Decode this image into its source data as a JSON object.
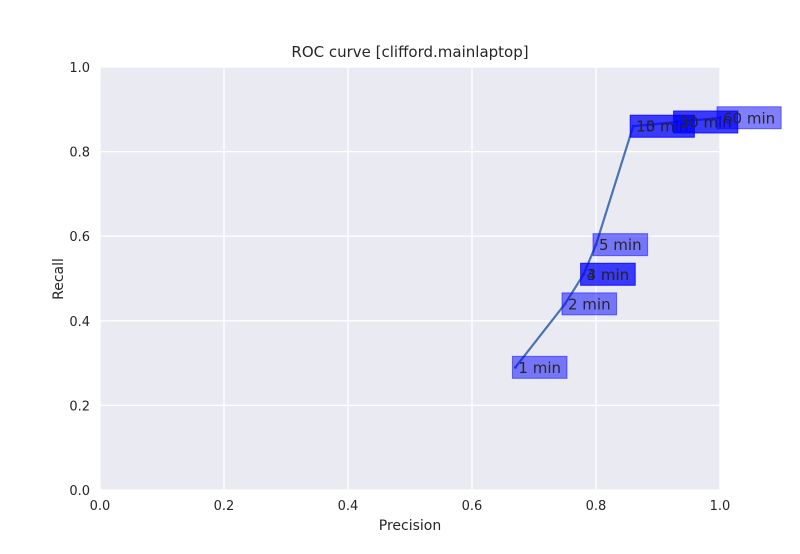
{
  "chart_data": {
    "type": "line",
    "title": "ROC curve [clifford.mainlaptop]",
    "xlabel": "Precision",
    "ylabel": "Recall",
    "xlim": [
      0.0,
      1.0
    ],
    "ylim": [
      0.0,
      1.0
    ],
    "xticks": [
      "0.0",
      "0.2",
      "0.4",
      "0.6",
      "0.8",
      "1.0"
    ],
    "yticks": [
      "0.0",
      "0.2",
      "0.4",
      "0.6",
      "0.8",
      "1.0"
    ],
    "grid": true,
    "series": [
      {
        "color": "#4c72b0",
        "points": [
          {
            "x": 0.67,
            "y": 0.29,
            "label": "1 min"
          },
          {
            "x": 0.75,
            "y": 0.44,
            "label": "2 min"
          },
          {
            "x": 0.78,
            "y": 0.51,
            "label": "3 min"
          },
          {
            "x": 0.78,
            "y": 0.51,
            "label": "4 min"
          },
          {
            "x": 0.8,
            "y": 0.58,
            "label": "5 min"
          },
          {
            "x": 0.86,
            "y": 0.86,
            "label": "10 min"
          },
          {
            "x": 0.86,
            "y": 0.86,
            "label": "15 min"
          },
          {
            "x": 0.93,
            "y": 0.87,
            "label": "20 min"
          },
          {
            "x": 0.93,
            "y": 0.87,
            "label": "30 min"
          },
          {
            "x": 1.0,
            "y": 0.88,
            "label": "60 min"
          }
        ]
      }
    ],
    "colors": {
      "plot_background": "#eaeaf2",
      "grid": "#ffffff",
      "label_box": "#0000ff"
    }
  }
}
